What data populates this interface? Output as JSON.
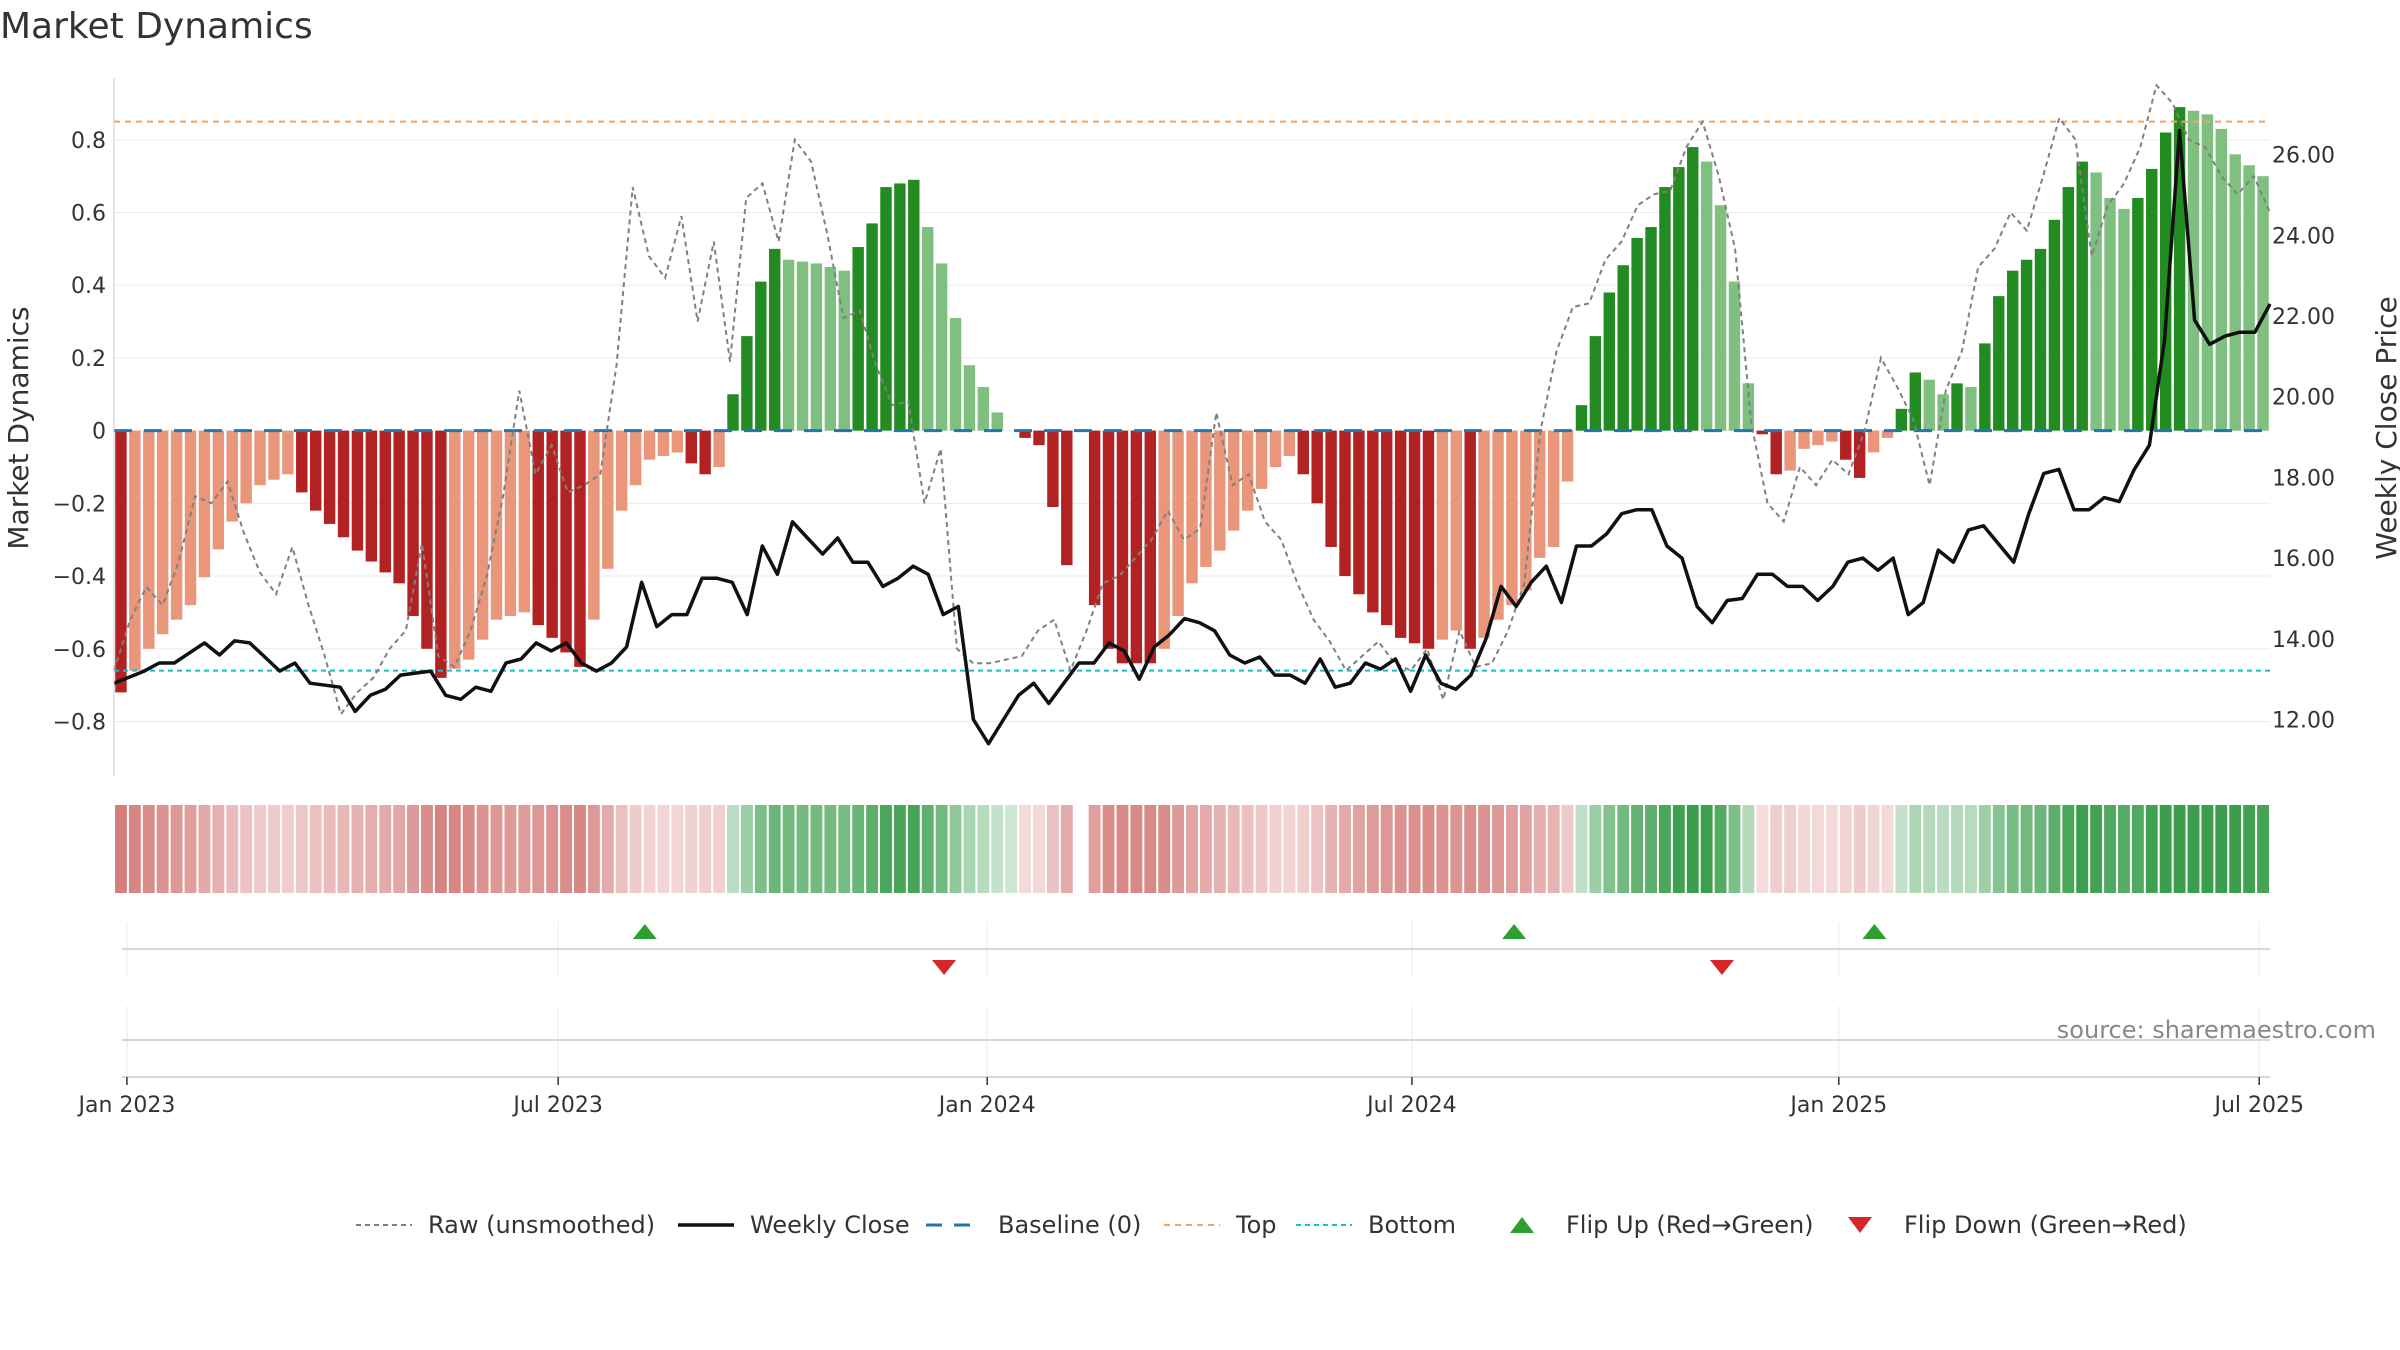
{
  "chart_data": {
    "type": "bar+line",
    "title": "Market Dynamics",
    "ylabel": "Market Dynamics",
    "y2label": "Weekly Close Price",
    "ylim": [
      -0.95,
      0.97
    ],
    "y2lim": [
      10.6,
      27.9
    ],
    "yticks": [
      -0.8,
      -0.6,
      -0.4,
      -0.2,
      0,
      0.2,
      0.4,
      0.6,
      0.8
    ],
    "ytick_labels": [
      "−0.8",
      "−0.6",
      "−0.4",
      "−0.2",
      "0",
      "0.2",
      "0.4",
      "0.6",
      "0.8"
    ],
    "y2ticks": [
      12,
      14,
      16,
      18,
      20,
      22,
      24,
      26
    ],
    "y2tick_labels": [
      "12.00",
      "14.00",
      "16.00",
      "18.00",
      "20.00",
      "22.00",
      "24.00",
      "26.00"
    ],
    "xticks": [
      "Jan 2023",
      "Jul 2023",
      "Jan 2024",
      "Jul 2024",
      "Jan 2025",
      "Jul 2025"
    ],
    "top_line": 0.85,
    "bottom_line": -0.66,
    "baseline": 0,
    "anchors_bar": [
      [
        0,
        -0.72
      ],
      [
        2,
        -0.6
      ],
      [
        5,
        -0.48
      ],
      [
        8,
        -0.25
      ],
      [
        10,
        -0.15
      ],
      [
        12,
        -0.12
      ],
      [
        14,
        -0.22
      ],
      [
        17,
        -0.33
      ],
      [
        20,
        -0.42
      ],
      [
        22,
        -0.6
      ],
      [
        23,
        -0.68
      ],
      [
        25,
        -0.63
      ],
      [
        27,
        -0.52
      ],
      [
        29,
        -0.5
      ],
      [
        31,
        -0.57
      ],
      [
        33,
        -0.65
      ],
      [
        34,
        -0.52
      ],
      [
        35,
        -0.38
      ],
      [
        36,
        -0.22
      ],
      [
        38,
        -0.08
      ],
      [
        40,
        -0.06
      ],
      [
        42,
        -0.12
      ],
      [
        43,
        -0.1
      ],
      [
        44,
        0.1
      ],
      [
        45,
        0.26
      ],
      [
        46,
        0.41
      ],
      [
        47,
        0.5
      ],
      [
        48,
        0.47
      ],
      [
        50,
        0.46
      ],
      [
        52,
        0.44
      ],
      [
        54,
        0.57
      ],
      [
        55,
        0.67
      ],
      [
        57,
        0.69
      ],
      [
        58,
        0.56
      ],
      [
        59,
        0.46
      ],
      [
        60,
        0.31
      ],
      [
        61,
        0.18
      ],
      [
        62,
        0.12
      ],
      [
        63,
        0.05
      ],
      [
        64,
        0.0
      ],
      [
        66,
        -0.04
      ],
      [
        67,
        -0.21
      ],
      [
        68,
        -0.37
      ],
      [
        69,
        0.0
      ],
      [
        70,
        -0.48
      ],
      [
        71,
        -0.6
      ],
      [
        72,
        -0.64
      ],
      [
        74,
        -0.64
      ],
      [
        75,
        -0.6
      ],
      [
        77,
        -0.42
      ],
      [
        79,
        -0.33
      ],
      [
        81,
        -0.22
      ],
      [
        83,
        -0.1
      ],
      [
        84,
        -0.07
      ],
      [
        85,
        -0.12
      ],
      [
        86,
        -0.2
      ],
      [
        87,
        -0.32
      ],
      [
        88,
        -0.4
      ],
      [
        90,
        -0.5
      ],
      [
        92,
        -0.57
      ],
      [
        94,
        -0.6
      ],
      [
        96,
        -0.55
      ],
      [
        97,
        -0.6
      ],
      [
        98,
        -0.57
      ],
      [
        99,
        -0.52
      ],
      [
        101,
        -0.44
      ],
      [
        102,
        -0.35
      ],
      [
        103,
        -0.32
      ],
      [
        104,
        -0.14
      ],
      [
        105,
        0.07
      ],
      [
        106,
        0.26
      ],
      [
        107,
        0.38
      ],
      [
        109,
        0.53
      ],
      [
        110,
        0.56
      ],
      [
        111,
        0.67
      ],
      [
        113,
        0.78
      ],
      [
        114,
        0.74
      ],
      [
        115,
        0.62
      ],
      [
        116,
        0.41
      ],
      [
        117,
        0.13
      ],
      [
        118,
        -0.01
      ],
      [
        119,
        -0.12
      ],
      [
        120,
        -0.11
      ],
      [
        121,
        -0.05
      ],
      [
        123,
        -0.03
      ],
      [
        124,
        -0.08
      ],
      [
        125,
        -0.13
      ],
      [
        126,
        -0.06
      ],
      [
        127,
        -0.02
      ],
      [
        128,
        0.06
      ],
      [
        129,
        0.16
      ],
      [
        130,
        0.14
      ],
      [
        131,
        0.1
      ],
      [
        132,
        0.13
      ],
      [
        133,
        0.12
      ],
      [
        134,
        0.24
      ],
      [
        135,
        0.37
      ],
      [
        136,
        0.44
      ],
      [
        137,
        0.47
      ],
      [
        138,
        0.5
      ],
      [
        139,
        0.58
      ],
      [
        140,
        0.67
      ],
      [
        141,
        0.74
      ],
      [
        142,
        0.71
      ],
      [
        143,
        0.64
      ],
      [
        144,
        0.61
      ],
      [
        145,
        0.64
      ],
      [
        146,
        0.72
      ],
      [
        147,
        0.82
      ],
      [
        148,
        0.89
      ],
      [
        149,
        0.88
      ],
      [
        150,
        0.87
      ],
      [
        151,
        0.83
      ],
      [
        152,
        0.76
      ],
      [
        153,
        0.73
      ],
      [
        154,
        0.7
      ]
    ],
    "anchors_raw": [
      [
        0,
        -0.66
      ],
      [
        1,
        -0.52
      ],
      [
        2,
        -0.43
      ],
      [
        3,
        -0.48
      ],
      [
        4,
        -0.36
      ],
      [
        5,
        -0.18
      ],
      [
        6,
        -0.2
      ],
      [
        7,
        -0.14
      ],
      [
        8,
        -0.28
      ],
      [
        9,
        -0.39
      ],
      [
        10,
        -0.45
      ],
      [
        11,
        -0.32
      ],
      [
        12,
        -0.48
      ],
      [
        13,
        -0.62
      ],
      [
        14,
        -0.78
      ],
      [
        15,
        -0.72
      ],
      [
        16,
        -0.68
      ],
      [
        17,
        -0.6
      ],
      [
        18,
        -0.55
      ],
      [
        19,
        -0.31
      ],
      [
        20,
        -0.62
      ],
      [
        21,
        -0.65
      ],
      [
        22,
        -0.55
      ],
      [
        23,
        -0.4
      ],
      [
        24,
        -0.18
      ],
      [
        25,
        0.11
      ],
      [
        26,
        -0.12
      ],
      [
        27,
        -0.04
      ],
      [
        28,
        -0.17
      ],
      [
        29,
        -0.15
      ],
      [
        30,
        -0.12
      ],
      [
        31,
        0.18
      ],
      [
        32,
        0.67
      ],
      [
        33,
        0.48
      ],
      [
        34,
        0.42
      ],
      [
        35,
        0.59
      ],
      [
        36,
        0.3
      ],
      [
        37,
        0.52
      ],
      [
        38,
        0.19
      ],
      [
        39,
        0.64
      ],
      [
        40,
        0.68
      ],
      [
        41,
        0.52
      ],
      [
        42,
        0.8
      ],
      [
        43,
        0.74
      ],
      [
        44,
        0.54
      ],
      [
        45,
        0.31
      ],
      [
        46,
        0.33
      ],
      [
        47,
        0.18
      ],
      [
        48,
        0.07
      ],
      [
        49,
        0.08
      ],
      [
        50,
        -0.2
      ],
      [
        51,
        -0.05
      ],
      [
        52,
        -0.6
      ],
      [
        53,
        -0.64
      ],
      [
        54,
        -0.64
      ],
      [
        55,
        -0.63
      ],
      [
        56,
        -0.62
      ],
      [
        57,
        -0.55
      ],
      [
        58,
        -0.52
      ],
      [
        59,
        -0.66
      ],
      [
        60,
        -0.55
      ],
      [
        61,
        -0.42
      ],
      [
        62,
        -0.4
      ],
      [
        63,
        -0.35
      ],
      [
        64,
        -0.3
      ],
      [
        65,
        -0.22
      ],
      [
        66,
        -0.3
      ],
      [
        67,
        -0.27
      ],
      [
        68,
        0.05
      ],
      [
        69,
        -0.15
      ],
      [
        70,
        -0.12
      ],
      [
        71,
        -0.25
      ],
      [
        72,
        -0.3
      ],
      [
        73,
        -0.42
      ],
      [
        74,
        -0.52
      ],
      [
        75,
        -0.58
      ],
      [
        76,
        -0.66
      ],
      [
        77,
        -0.62
      ],
      [
        78,
        -0.58
      ],
      [
        79,
        -0.64
      ],
      [
        80,
        -0.66
      ],
      [
        81,
        -0.6
      ],
      [
        82,
        -0.74
      ],
      [
        83,
        -0.55
      ],
      [
        84,
        -0.65
      ],
      [
        85,
        -0.64
      ],
      [
        86,
        -0.55
      ],
      [
        87,
        -0.42
      ],
      [
        88,
        0.0
      ],
      [
        89,
        0.22
      ],
      [
        90,
        0.34
      ],
      [
        91,
        0.35
      ],
      [
        92,
        0.47
      ],
      [
        93,
        0.52
      ],
      [
        94,
        0.62
      ],
      [
        95,
        0.65
      ],
      [
        96,
        0.66
      ],
      [
        97,
        0.78
      ],
      [
        98,
        0.85
      ],
      [
        99,
        0.7
      ],
      [
        100,
        0.5
      ],
      [
        101,
        0.02
      ],
      [
        102,
        -0.2
      ],
      [
        103,
        -0.25
      ],
      [
        104,
        -0.1
      ],
      [
        105,
        -0.15
      ],
      [
        106,
        -0.08
      ],
      [
        107,
        -0.12
      ],
      [
        108,
        0.0
      ],
      [
        109,
        0.2
      ],
      [
        110,
        0.12
      ],
      [
        111,
        0.03
      ],
      [
        112,
        -0.15
      ],
      [
        113,
        0.11
      ],
      [
        114,
        0.22
      ],
      [
        115,
        0.45
      ],
      [
        116,
        0.5
      ],
      [
        117,
        0.6
      ],
      [
        118,
        0.55
      ],
      [
        119,
        0.7
      ],
      [
        120,
        0.86
      ],
      [
        121,
        0.8
      ],
      [
        122,
        0.48
      ],
      [
        123,
        0.62
      ],
      [
        124,
        0.68
      ],
      [
        125,
        0.78
      ],
      [
        126,
        0.95
      ],
      [
        127,
        0.9
      ],
      [
        128,
        0.8
      ],
      [
        129,
        0.78
      ],
      [
        130,
        0.7
      ],
      [
        131,
        0.65
      ],
      [
        132,
        0.7
      ],
      [
        133,
        0.6
      ]
    ],
    "anchors_close": [
      [
        0,
        12.9
      ],
      [
        2,
        13.2
      ],
      [
        3,
        13.4
      ],
      [
        4,
        13.4
      ],
      [
        6,
        13.9
      ],
      [
        7,
        13.6
      ],
      [
        8,
        13.95
      ],
      [
        9,
        13.9
      ],
      [
        11,
        13.2
      ],
      [
        12,
        13.4
      ],
      [
        13,
        12.9
      ],
      [
        15,
        12.8
      ],
      [
        16,
        12.2
      ],
      [
        17,
        12.6
      ],
      [
        18,
        12.75
      ],
      [
        19,
        13.1
      ],
      [
        21,
        13.2
      ],
      [
        22,
        12.6
      ],
      [
        23,
        12.5
      ],
      [
        24,
        12.8
      ],
      [
        25,
        12.7
      ],
      [
        26,
        13.4
      ],
      [
        27,
        13.5
      ],
      [
        28,
        13.9
      ],
      [
        29,
        13.7
      ],
      [
        30,
        13.9
      ],
      [
        31,
        13.4
      ],
      [
        32,
        13.2
      ],
      [
        33,
        13.4
      ],
      [
        34,
        13.8
      ],
      [
        35,
        15.4
      ],
      [
        36,
        14.3
      ],
      [
        37,
        14.6
      ],
      [
        38,
        14.6
      ],
      [
        39,
        15.5
      ],
      [
        40,
        15.5
      ],
      [
        41,
        15.4
      ],
      [
        42,
        14.6
      ],
      [
        43,
        16.3
      ],
      [
        44,
        15.6
      ],
      [
        45,
        16.9
      ],
      [
        46,
        16.5
      ],
      [
        47,
        16.1
      ],
      [
        48,
        16.5
      ],
      [
        49,
        15.9
      ],
      [
        50,
        15.9
      ],
      [
        51,
        15.3
      ],
      [
        52,
        15.5
      ],
      [
        53,
        15.8
      ],
      [
        54,
        15.6
      ],
      [
        55,
        14.6
      ],
      [
        56,
        14.8
      ],
      [
        57,
        12.0
      ],
      [
        58,
        11.4
      ],
      [
        59,
        12.0
      ],
      [
        60,
        12.6
      ],
      [
        61,
        12.9
      ],
      [
        62,
        12.4
      ],
      [
        63,
        12.9
      ],
      [
        64,
        13.4
      ],
      [
        65,
        13.4
      ],
      [
        66,
        13.9
      ],
      [
        67,
        13.7
      ],
      [
        68,
        13.0
      ],
      [
        69,
        13.8
      ],
      [
        70,
        14.1
      ],
      [
        71,
        14.5
      ],
      [
        72,
        14.4
      ],
      [
        73,
        14.2
      ],
      [
        74,
        13.6
      ],
      [
        75,
        13.4
      ],
      [
        76,
        13.55
      ],
      [
        77,
        13.1
      ],
      [
        78,
        13.1
      ],
      [
        79,
        12.9
      ],
      [
        80,
        13.5
      ],
      [
        81,
        12.8
      ],
      [
        82,
        12.9
      ],
      [
        83,
        13.4
      ],
      [
        84,
        13.25
      ],
      [
        85,
        13.5
      ],
      [
        86,
        12.7
      ],
      [
        87,
        13.6
      ],
      [
        88,
        12.9
      ],
      [
        89,
        12.75
      ],
      [
        90,
        13.1
      ],
      [
        91,
        14.0
      ],
      [
        92,
        15.3
      ],
      [
        93,
        14.8
      ],
      [
        94,
        15.4
      ],
      [
        95,
        15.8
      ],
      [
        96,
        14.9
      ],
      [
        97,
        16.3
      ],
      [
        98,
        16.3
      ],
      [
        99,
        16.6
      ],
      [
        100,
        17.1
      ],
      [
        101,
        17.2
      ],
      [
        102,
        17.2
      ],
      [
        103,
        16.3
      ],
      [
        104,
        16.0
      ],
      [
        105,
        14.8
      ],
      [
        106,
        14.4
      ],
      [
        107,
        14.95
      ],
      [
        108,
        15.0
      ],
      [
        109,
        15.6
      ],
      [
        110,
        15.6
      ],
      [
        111,
        15.3
      ],
      [
        112,
        15.3
      ],
      [
        113,
        14.95
      ],
      [
        114,
        15.3
      ],
      [
        115,
        15.9
      ],
      [
        116,
        16.0
      ],
      [
        117,
        15.7
      ],
      [
        118,
        16.0
      ],
      [
        119,
        14.6
      ],
      [
        120,
        14.9
      ],
      [
        121,
        16.2
      ],
      [
        122,
        15.9
      ],
      [
        123,
        16.7
      ],
      [
        124,
        16.8
      ],
      [
        125,
        16.35
      ],
      [
        126,
        15.9
      ],
      [
        127,
        17.1
      ],
      [
        128,
        18.1
      ],
      [
        129,
        18.2
      ],
      [
        130,
        17.2
      ],
      [
        131,
        17.2
      ],
      [
        132,
        17.5
      ],
      [
        133,
        17.4
      ],
      [
        134,
        18.2
      ],
      [
        135,
        18.8
      ],
      [
        136,
        21.4
      ],
      [
        137,
        26.6
      ],
      [
        138,
        21.9
      ],
      [
        139,
        21.3
      ],
      [
        140,
        21.5
      ],
      [
        141,
        21.6
      ],
      [
        142,
        21.6
      ],
      [
        143,
        22.3
      ]
    ],
    "flips_up": [
      0.2462,
      0.6494,
      0.8165
    ],
    "flips_down": [
      0.385,
      0.7458
    ],
    "legend": [
      {
        "label": "Raw (unsmoothed)",
        "style": "raw"
      },
      {
        "label": "Weekly Close",
        "style": "close"
      },
      {
        "label": "Baseline (0)",
        "style": "baseline"
      },
      {
        "label": "Top",
        "style": "top"
      },
      {
        "label": "Bottom",
        "style": "bottom"
      },
      {
        "label": "Flip Up (Red→Green)",
        "style": "flipup"
      },
      {
        "label": "Flip Down (Green→Red)",
        "style": "flipdown"
      }
    ],
    "source": "source: sharemaestro.com",
    "colors": {
      "dark_green": "#228b22",
      "light_green": "#7fbf7f",
      "dark_red": "#b22222",
      "light_red": "#e9967a",
      "raw": "#808080",
      "close": "#111111",
      "baseline": "#1f77b4",
      "top": "#f4a460",
      "bottom": "#17becf",
      "flip_up": "#2ca02c",
      "flip_down": "#d62728",
      "grid": "#ebebeb",
      "strip_red": "#d47a78",
      "strip_green": "#3a9e4c"
    }
  }
}
